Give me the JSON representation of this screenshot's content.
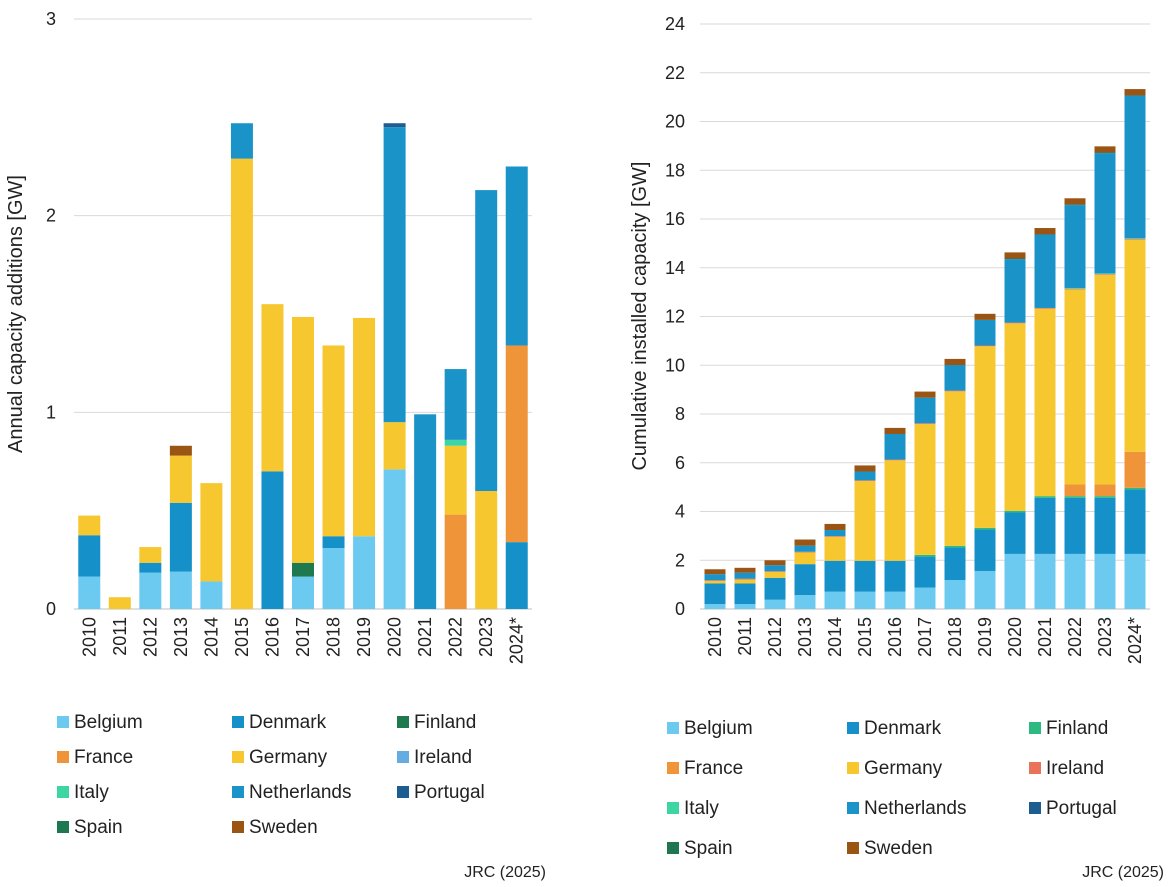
{
  "source": "JRC (2025)",
  "colors": {
    "Belgium": "#6CCAF1",
    "Denmark": "#1590C8",
    "Finland_left": "#1E7A4E",
    "Finland_right": "#2DB97F",
    "France": "#F0943A",
    "Germany": "#F6C72E",
    "Ireland_left": "#65ACE0",
    "Ireland_right": "#E8735A",
    "Italy": "#3DD6A2",
    "Netherlands": "#1A93C9",
    "Portugal": "#1E5D92",
    "Spain": "#1F7752",
    "Sweden": "#9A5514",
    "grid": "#D9D9D9",
    "axis": "#BFBFBF"
  },
  "chart_data": [
    {
      "type": "bar",
      "stacked": true,
      "title": "",
      "xlabel": "",
      "ylabel": "Annual capacity additions [GW]",
      "ylim": [
        0,
        3
      ],
      "yticks": [
        "0",
        "1",
        "2",
        "3"
      ],
      "grid": true,
      "legend_position": "bottom",
      "categories": [
        "2010",
        "2011",
        "2012",
        "2013",
        "2014",
        "2015",
        "2016",
        "2017",
        "2018",
        "2019",
        "2020",
        "2021",
        "2022",
        "2023",
        "2024*"
      ],
      "legend": [
        "Belgium",
        "Denmark",
        "Finland",
        "France",
        "Germany",
        "Ireland",
        "Italy",
        "Netherlands",
        "Portugal",
        "Spain",
        "Sweden"
      ],
      "series": [
        {
          "name": "Belgium",
          "color_key": "Belgium",
          "values": [
            0.165,
            0,
            0.185,
            0.19,
            0.14,
            0,
            0,
            0.165,
            0.31,
            0.37,
            0.71,
            0,
            0,
            0,
            0
          ]
        },
        {
          "name": "Denmark",
          "color_key": "Denmark",
          "values": [
            0.21,
            0,
            0.05,
            0.35,
            0,
            0,
            0.7,
            0,
            0.06,
            0,
            0,
            0,
            0,
            0,
            0.34
          ]
        },
        {
          "name": "Finland",
          "color_key": "Finland_left",
          "values": [
            0,
            0,
            0,
            0,
            0,
            0,
            0,
            0.07,
            0,
            0,
            0,
            0,
            0,
            0,
            0
          ]
        },
        {
          "name": "France",
          "color_key": "France",
          "values": [
            0,
            0,
            0,
            0,
            0,
            0,
            0,
            0,
            0,
            0,
            0,
            0,
            0.48,
            0,
            1.0
          ]
        },
        {
          "name": "Germany",
          "color_key": "Germany",
          "values": [
            0.1,
            0.06,
            0.08,
            0.24,
            0.5,
            2.29,
            0.85,
            1.25,
            0.97,
            1.11,
            0.24,
            0,
            0.35,
            0.6,
            0
          ]
        },
        {
          "name": "Ireland",
          "color_key": "Ireland_left",
          "values": [
            0,
            0,
            0,
            0,
            0,
            0,
            0,
            0,
            0,
            0,
            0,
            0,
            0,
            0,
            0
          ]
        },
        {
          "name": "Italy",
          "color_key": "Italy",
          "values": [
            0,
            0,
            0,
            0,
            0,
            0,
            0,
            0,
            0,
            0,
            0,
            0,
            0.03,
            0,
            0
          ]
        },
        {
          "name": "Netherlands",
          "color_key": "Netherlands",
          "values": [
            0,
            0,
            0,
            0,
            0,
            0.18,
            0,
            0,
            0,
            0,
            1.5,
            0.99,
            0.36,
            1.53,
            0.91
          ]
        },
        {
          "name": "Portugal",
          "color_key": "Portugal",
          "values": [
            0,
            0,
            0,
            0,
            0,
            0,
            0,
            0,
            0,
            0,
            0.02,
            0,
            0,
            0,
            0
          ]
        },
        {
          "name": "Spain",
          "color_key": "Spain",
          "values": [
            0,
            0,
            0,
            0,
            0,
            0,
            0,
            0,
            0,
            0,
            0,
            0,
            0,
            0,
            0
          ]
        },
        {
          "name": "Sweden",
          "color_key": "Sweden",
          "values": [
            0,
            0,
            0,
            0.05,
            0,
            0,
            0,
            0,
            0,
            0,
            0,
            0,
            0,
            0,
            0
          ]
        }
      ]
    },
    {
      "type": "bar",
      "stacked": true,
      "title": "",
      "xlabel": "",
      "ylabel": "Cumulative installed capacity [GW]",
      "ylim": [
        0,
        24
      ],
      "yticks": [
        "0",
        "2",
        "4",
        "6",
        "8",
        "10",
        "12",
        "14",
        "16",
        "18",
        "20",
        "22",
        "24"
      ],
      "grid": true,
      "legend_position": "bottom",
      "categories": [
        "2010",
        "2011",
        "2012",
        "2013",
        "2014",
        "2015",
        "2016",
        "2017",
        "2018",
        "2019",
        "2020",
        "2021",
        "2022",
        "2023",
        "2024*"
      ],
      "legend": [
        "Belgium",
        "Denmark",
        "Finland",
        "France",
        "Germany",
        "Ireland",
        "Italy",
        "Netherlands",
        "Portugal",
        "Spain",
        "Sweden"
      ],
      "series": [
        {
          "name": "Belgium",
          "color_key": "Belgium",
          "values": [
            0.2,
            0.2,
            0.38,
            0.57,
            0.71,
            0.71,
            0.71,
            0.88,
            1.19,
            1.56,
            2.26,
            2.26,
            2.26,
            2.26,
            2.26
          ]
        },
        {
          "name": "Denmark",
          "color_key": "Denmark",
          "values": [
            0.85,
            0.85,
            0.9,
            1.27,
            1.27,
            1.27,
            1.27,
            1.27,
            1.33,
            1.7,
            1.7,
            2.3,
            2.3,
            2.3,
            2.64
          ]
        },
        {
          "name": "Finland",
          "color_key": "Finland_right",
          "values": [
            0,
            0,
            0,
            0,
            0,
            0,
            0,
            0.07,
            0.07,
            0.07,
            0.07,
            0.07,
            0.07,
            0.07,
            0.07
          ]
        },
        {
          "name": "France",
          "color_key": "France",
          "values": [
            0,
            0,
            0,
            0,
            0,
            0,
            0,
            0,
            0,
            0,
            0,
            0,
            0.48,
            0.48,
            1.48
          ]
        },
        {
          "name": "Germany",
          "color_key": "Germany",
          "values": [
            0.1,
            0.16,
            0.24,
            0.48,
            0.98,
            3.27,
            4.12,
            5.37,
            6.34,
            7.45,
            7.69,
            7.69,
            8.0,
            8.6,
            8.7
          ]
        },
        {
          "name": "Ireland",
          "color_key": "Ireland_right",
          "values": [
            0.03,
            0.03,
            0.03,
            0.03,
            0.03,
            0.03,
            0.03,
            0.03,
            0.03,
            0.03,
            0.03,
            0.03,
            0.03,
            0.03,
            0.03
          ]
        },
        {
          "name": "Italy",
          "color_key": "Italy",
          "values": [
            0,
            0,
            0,
            0,
            0,
            0,
            0,
            0,
            0,
            0,
            0,
            0,
            0.03,
            0.03,
            0.03
          ]
        },
        {
          "name": "Netherlands",
          "color_key": "Netherlands",
          "values": [
            0.25,
            0.25,
            0.25,
            0.25,
            0.25,
            0.36,
            1.05,
            1.05,
            1.05,
            1.05,
            2.6,
            3.0,
            3.4,
            4.93,
            5.84
          ]
        },
        {
          "name": "Portugal",
          "color_key": "Portugal",
          "values": [
            0,
            0,
            0,
            0,
            0,
            0,
            0,
            0,
            0,
            0,
            0.02,
            0.02,
            0.02,
            0.02,
            0.02
          ]
        },
        {
          "name": "Spain",
          "color_key": "Spain",
          "values": [
            0,
            0,
            0,
            0,
            0,
            0,
            0,
            0,
            0,
            0,
            0.01,
            0.01,
            0.01,
            0.01,
            0.01
          ]
        },
        {
          "name": "Sweden",
          "color_key": "Sweden",
          "values": [
            0.2,
            0.2,
            0.2,
            0.25,
            0.25,
            0.25,
            0.25,
            0.25,
            0.25,
            0.25,
            0.25,
            0.25,
            0.25,
            0.25,
            0.25
          ]
        }
      ]
    }
  ]
}
